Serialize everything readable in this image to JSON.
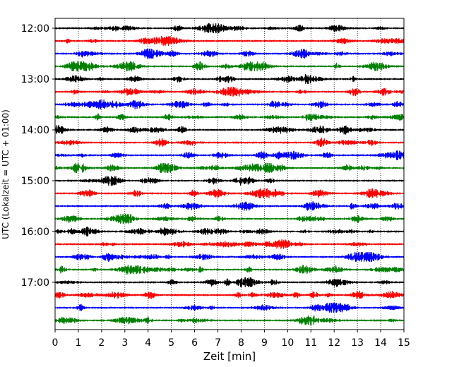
{
  "chart_data": {
    "type": "line",
    "title": "",
    "xlabel": "Zeit  [min]",
    "ylabel": "UTC (Lokalzeit = UTC + 01:00)",
    "xlim": [
      0,
      15
    ],
    "x_ticks": [
      "0",
      "1",
      "2",
      "3",
      "4",
      "5",
      "6",
      "7",
      "8",
      "9",
      "10",
      "11",
      "12",
      "13",
      "14",
      "15"
    ],
    "y_tick_labels": [
      "12:00",
      "13:00",
      "14:00",
      "15:00",
      "16:00",
      "17:00"
    ],
    "grid": "vertical dotted lines at each minute",
    "trace_interval_minutes": 15,
    "series": [
      {
        "start": "12:00",
        "color": "#000000"
      },
      {
        "start": "12:15",
        "color": "#ff0000"
      },
      {
        "start": "12:30",
        "color": "#0000ff"
      },
      {
        "start": "12:45",
        "color": "#008000"
      },
      {
        "start": "13:00",
        "color": "#000000"
      },
      {
        "start": "13:15",
        "color": "#ff0000"
      },
      {
        "start": "13:30",
        "color": "#0000ff"
      },
      {
        "start": "13:45",
        "color": "#008000"
      },
      {
        "start": "14:00",
        "color": "#000000"
      },
      {
        "start": "14:15",
        "color": "#ff0000"
      },
      {
        "start": "14:30",
        "color": "#0000ff"
      },
      {
        "start": "14:45",
        "color": "#008000"
      },
      {
        "start": "15:00",
        "color": "#000000"
      },
      {
        "start": "15:15",
        "color": "#ff0000"
      },
      {
        "start": "15:30",
        "color": "#0000ff"
      },
      {
        "start": "15:45",
        "color": "#008000"
      },
      {
        "start": "16:00",
        "color": "#000000"
      },
      {
        "start": "16:15",
        "color": "#ff0000"
      },
      {
        "start": "16:30",
        "color": "#0000ff"
      },
      {
        "start": "16:45",
        "color": "#008000"
      },
      {
        "start": "17:00",
        "color": "#000000"
      },
      {
        "start": "17:15",
        "color": "#ff0000"
      },
      {
        "start": "17:30",
        "color": "#0000ff"
      },
      {
        "start": "17:45",
        "color": "#008000"
      }
    ]
  }
}
